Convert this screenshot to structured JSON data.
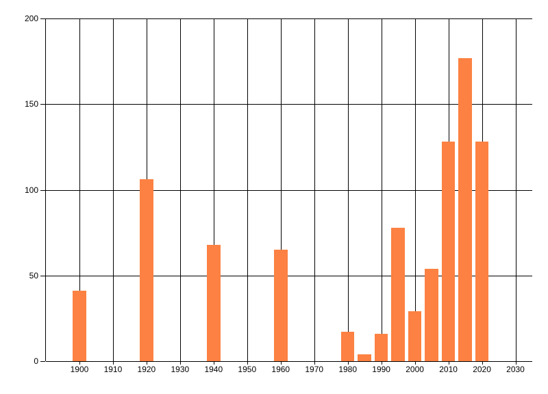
{
  "chart_data": {
    "type": "bar",
    "title": "",
    "xlabel": "",
    "ylabel": "",
    "x": [
      1900,
      1920,
      1940,
      1960,
      1980,
      1985,
      1990,
      1995,
      2000,
      2005,
      2010,
      2015,
      2020
    ],
    "values": [
      41,
      106,
      68,
      65,
      17,
      4,
      16,
      78,
      29,
      54,
      128,
      177,
      128
    ],
    "x_ticks": [
      1900,
      1910,
      1920,
      1930,
      1940,
      1950,
      1960,
      1970,
      1980,
      1990,
      2000,
      2010,
      2020,
      2030
    ],
    "y_ticks": [
      0,
      50,
      100,
      150,
      200
    ],
    "xlim": [
      1890,
      2035
    ],
    "ylim": [
      0,
      200
    ],
    "bar_width_years": 4,
    "bar_color": "#FC8142",
    "line_color": "#000000",
    "background_color": "#FFFFFF",
    "grid": true,
    "legend": false
  }
}
